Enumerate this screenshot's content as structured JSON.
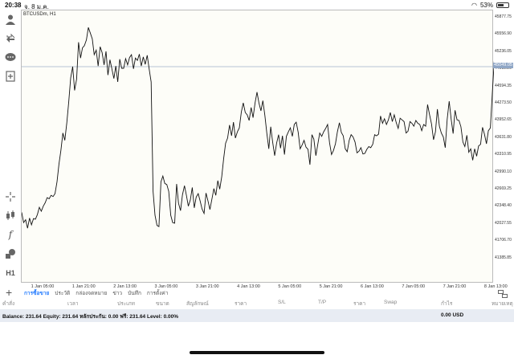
{
  "status": {
    "time": "20:38",
    "date": "จ. 8 ม.ค.",
    "battery": "53%",
    "battery_level": 0.53
  },
  "chart": {
    "symbol": "BTCUSDm, H1",
    "current_price": "45049.05",
    "price_ticks": [
      "45877.75",
      "45556.90",
      "45236.05",
      "44915.20",
      "44594.35",
      "44273.50",
      "43952.65",
      "43631.80",
      "43310.95",
      "42990.10",
      "42669.25",
      "42348.40",
      "42027.55",
      "41706.70",
      "41385.85"
    ],
    "time_ticks": [
      "1 Jan 05:00",
      "1 Jan 21:00",
      "2 Jan 13:00",
      "3 Jan 05:00",
      "3 Jan 21:00",
      "4 Jan 13:00",
      "5 Jan 05:00",
      "5 Jan 21:00",
      "6 Jan 13:00",
      "7 Jan 05:00",
      "7 Jan 21:00",
      "8 Jan 13:00"
    ]
  },
  "chart_data": {
    "type": "line",
    "ylim": [
      41226,
      46040
    ],
    "x_start": "1 Jan 03:00",
    "x_step_hours": 1,
    "values": [
      42480,
      42300,
      42350,
      42200,
      42380,
      42260,
      42370,
      42360,
      42440,
      42570,
      42500,
      42590,
      42650,
      42740,
      42720,
      42780,
      42760,
      42810,
      43020,
      43330,
      43570,
      43880,
      43750,
      44060,
      44430,
      44850,
      45050,
      44630,
      44830,
      45480,
      45200,
      45380,
      45420,
      45520,
      45740,
      45640,
      45540,
      45260,
      45340,
      45060,
      45400,
      45300,
      45080,
      45320,
      44900,
      45170,
      45010,
      44840,
      45060,
      44780,
      45180,
      45020,
      45020,
      45190,
      45080,
      45210,
      45260,
      45010,
      45200,
      45160,
      45270,
      45060,
      45220,
      45090,
      45250,
      45010,
      44780,
      42850,
      42430,
      42250,
      42230,
      43020,
      43120,
      42990,
      42970,
      42850,
      42430,
      42300,
      42290,
      42980,
      42640,
      42510,
      42790,
      42950,
      42780,
      42590,
      42700,
      42920,
      42560,
      42750,
      42810,
      42680,
      42540,
      42460,
      42820,
      42680,
      42530,
      42710,
      42900,
      42780,
      43040,
      42890,
      43110,
      43430,
      43700,
      43790,
      44020,
      43830,
      44070,
      43790,
      43900,
      43970,
      44250,
      44410,
      44240,
      44200,
      44100,
      44330,
      44150,
      44410,
      44600,
      44410,
      44270,
      44450,
      44190,
      43880,
      43600,
      43990,
      43720,
      43480,
      43700,
      43850,
      43610,
      43830,
      43500,
      43820,
      43900,
      43970,
      43820,
      44030,
      44070,
      43890,
      43600,
      43670,
      43750,
      43630,
      43590,
      43320,
      43850,
      43770,
      43480,
      43680,
      43880,
      43820,
      43900,
      43960,
      44030,
      43710,
      43500,
      43570,
      43690,
      43900,
      44060,
      43890,
      43830,
      43600,
      43550,
      43750,
      43850,
      43810,
      43720,
      43530,
      43560,
      43620,
      43510,
      43520,
      43590,
      43640,
      43620,
      43680,
      43850,
      43830,
      43860,
      44180,
      44050,
      44130,
      44030,
      44110,
      44240,
      44080,
      44200,
      44060,
      43960,
      44140,
      44110,
      44080,
      43880,
      43910,
      44080,
      44050,
      44000,
      44100,
      44050,
      44030,
      43920,
      44030,
      44000,
      44380,
      44200,
      44040,
      43760,
      43900,
      44300,
      44000,
      43880,
      43810,
      43620,
      44120,
      44440,
      44130,
      43870,
      44280,
      44110,
      44100,
      43990,
      43720,
      43640,
      43840,
      43540,
      43600,
      43400,
      43600,
      43470,
      43650,
      43680,
      43980,
      43860,
      43690,
      43920,
      43970,
      44580,
      45150,
      45040
    ],
    "current_price": 45049.05
  },
  "tabs": [
    "การซื้อขาย",
    "ประวัติ",
    "กล่องจดหมาย",
    "ข่าว",
    "บันทึก",
    "การตั้งค่า"
  ],
  "active_tab": 0,
  "columns": [
    "คำสั่ง",
    "เวลา",
    "ประเภท",
    "ขนาด",
    "สัญลักษณ์",
    "ราคา",
    "S/L",
    "T/P",
    "ราคา",
    "Swap",
    "กำไร",
    "หมายเหตุ"
  ],
  "balance": {
    "text": "Balance: 231.64 Equity: 231.64 หลักประกัน: 0.00 ฟรี: 231.64 Level: 0.00%",
    "profit": "0.00  USD"
  },
  "toolbar": [
    "user-icon",
    "trade-icon",
    "chat-icon",
    "new-order-icon",
    "crosshair-icon",
    "candles-icon",
    "indicator-icon",
    "objects-icon",
    "timeframe-icon"
  ],
  "timeframe_label": "H1"
}
